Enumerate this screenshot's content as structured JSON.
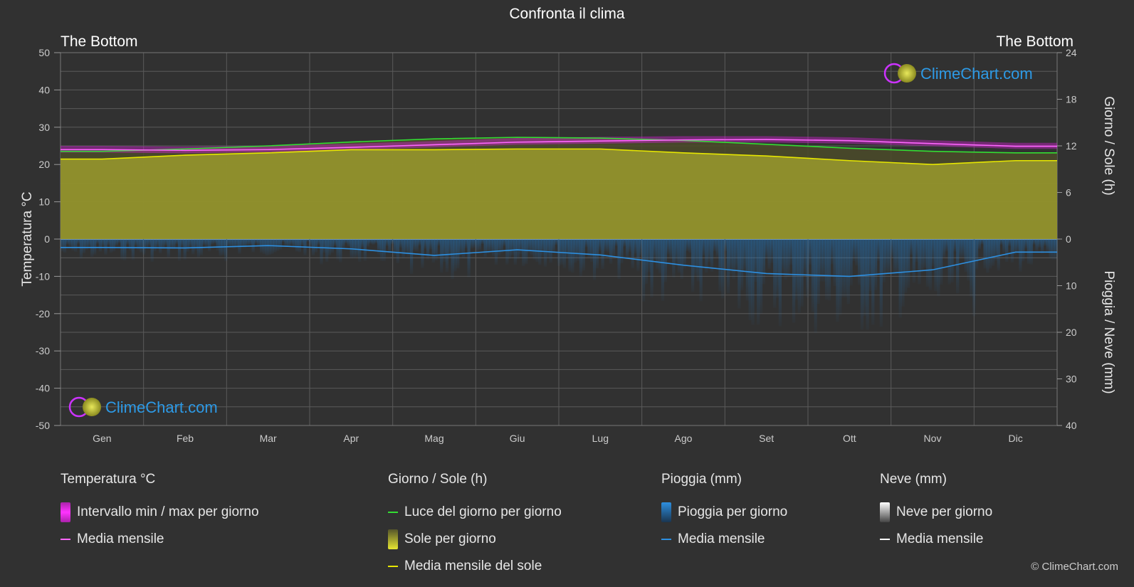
{
  "title": "Confronta il clima",
  "location_left": "The Bottom",
  "location_right": "The Bottom",
  "axes": {
    "left_label": "Temperatura °C",
    "right_top_label": "Giorno / Sole (h)",
    "right_bottom_label": "Pioggia / Neve (mm)",
    "left_ticks": [
      "50",
      "40",
      "30",
      "20",
      "10",
      "0",
      "-10",
      "-20",
      "-30",
      "-40",
      "-50"
    ],
    "right_top_ticks": [
      "24",
      "18",
      "12",
      "6",
      "0"
    ],
    "right_bottom_ticks": [
      "10",
      "20",
      "30",
      "40"
    ]
  },
  "logo_text": "ClimeChart.com",
  "copyright": "© ClimeChart.com",
  "colors": {
    "background": "#313131",
    "daylight": "#33dd33",
    "sunshine_fill": "#a6a62e",
    "sunshine_line": "#e6e600",
    "temp_band": "#cc22cc",
    "temp_line": "#ff66ff",
    "rain": "#1f7fd0",
    "rain_line": "#2d8fe0",
    "snow_line": "#ffffff"
  },
  "chart_data": {
    "type": "area",
    "categories": [
      "Gen",
      "Feb",
      "Mar",
      "Apr",
      "Mag",
      "Giu",
      "Lug",
      "Ago",
      "Set",
      "Ott",
      "Nov",
      "Dic"
    ],
    "temperature_ylim": [
      -50,
      50
    ],
    "hours_ylim": [
      0,
      24
    ],
    "precip_ylim": [
      0,
      40
    ],
    "series": [
      {
        "name": "Luce del giorno per giorno",
        "unit": "h",
        "values": [
          11.3,
          11.6,
          12.0,
          12.5,
          12.9,
          13.1,
          13.0,
          12.7,
          12.2,
          11.7,
          11.3,
          11.1
        ]
      },
      {
        "name": "Media mensile del sole",
        "unit": "h",
        "values": [
          10.3,
          10.8,
          11.1,
          11.5,
          11.5,
          11.6,
          11.6,
          11.1,
          10.7,
          10.1,
          9.6,
          10.1
        ]
      },
      {
        "name": "Media mensile",
        "unit": "°C",
        "values": [
          24.0,
          23.8,
          24.0,
          24.6,
          25.3,
          26.0,
          26.3,
          26.6,
          26.7,
          26.4,
          25.6,
          24.9
        ]
      },
      {
        "name": "Media mensile (pioggia)",
        "unit": "mm",
        "values": [
          1.8,
          1.9,
          1.4,
          2.1,
          3.5,
          2.3,
          3.4,
          5.6,
          7.4,
          8.0,
          6.6,
          2.8
        ]
      }
    ],
    "temp_range": {
      "min": [
        23.2,
        23.0,
        23.3,
        23.9,
        24.6,
        25.3,
        25.6,
        25.9,
        25.9,
        25.6,
        24.9,
        24.2
      ],
      "max": [
        25.0,
        24.8,
        25.0,
        25.6,
        26.3,
        27.1,
        27.4,
        27.6,
        27.6,
        27.3,
        26.5,
        25.8
      ]
    }
  },
  "legend": {
    "temperature": {
      "heading": "Temperatura °C",
      "items": [
        "Intervallo min / max per giorno",
        "Media mensile"
      ]
    },
    "sun": {
      "heading": "Giorno / Sole (h)",
      "items": [
        "Luce del giorno per giorno",
        "Sole per giorno",
        "Media mensile del sole"
      ]
    },
    "rain": {
      "heading": "Pioggia (mm)",
      "items": [
        "Pioggia per giorno",
        "Media mensile"
      ]
    },
    "snow": {
      "heading": "Neve (mm)",
      "items": [
        "Neve per giorno",
        "Media mensile"
      ]
    }
  }
}
